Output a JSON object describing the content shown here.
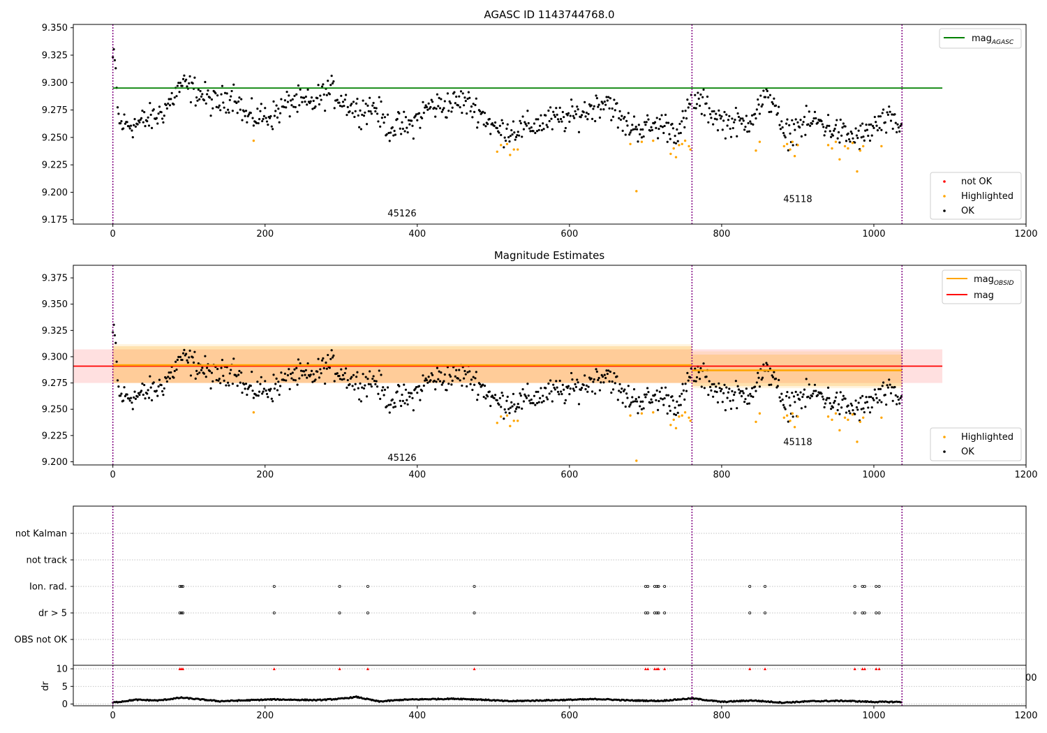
{
  "chart_data": [
    {
      "type": "scatter",
      "title": "AGASC ID 1143744768.0",
      "xlim": [
        -52,
        1200
      ],
      "ylim": [
        9.171,
        9.353
      ],
      "xticks": [
        "0",
        "200",
        "400",
        "600",
        "800",
        "1000",
        "1200"
      ],
      "yticks": [
        "9.175",
        "9.200",
        "9.225",
        "9.250",
        "9.275",
        "9.300",
        "9.325",
        "9.350"
      ],
      "xtick_values": [
        0,
        200,
        400,
        600,
        800,
        1000,
        1200
      ],
      "ytick_values": [
        9.175,
        9.2,
        9.225,
        9.25,
        9.275,
        9.3,
        9.325,
        9.35
      ],
      "obsid_boundaries": [
        0,
        761,
        1037
      ],
      "obsid_labels": [
        {
          "text": "45126",
          "x": 380,
          "y": 9.178
        },
        {
          "text": "45118",
          "x": 900,
          "y": 9.191
        }
      ],
      "agasc_mag": 9.295,
      "agasc_line_x": [
        0,
        1090
      ],
      "legend_top": {
        "position": "top-right",
        "label_main": "mag",
        "label_sub": "AGASC",
        "color": "#008000"
      },
      "legend_bottom": {
        "position": "bottom-right",
        "entries": [
          {
            "name": "not OK",
            "color": "#ff0000"
          },
          {
            "name": "Highlighted",
            "color": "#ffa500"
          },
          {
            "name": "OK",
            "color": "#000000"
          }
        ]
      },
      "series": [
        {
          "name": "OK",
          "color": "#000000",
          "anchors": [
            [
              0,
              9.322
            ],
            [
              3,
              9.316
            ],
            [
              8,
              9.262
            ],
            [
              30,
              9.262
            ],
            [
              60,
              9.27
            ],
            [
              75,
              9.282
            ],
            [
              90,
              9.298
            ],
            [
              110,
              9.292
            ],
            [
              135,
              9.28
            ],
            [
              160,
              9.29
            ],
            [
              175,
              9.268
            ],
            [
              210,
              9.27
            ],
            [
              235,
              9.283
            ],
            [
              260,
              9.28
            ],
            [
              285,
              9.293
            ],
            [
              300,
              9.285
            ],
            [
              320,
              9.275
            ],
            [
              345,
              9.278
            ],
            [
              360,
              9.26
            ],
            [
              390,
              9.26
            ],
            [
              415,
              9.278
            ],
            [
              440,
              9.28
            ],
            [
              460,
              9.283
            ],
            [
              480,
              9.275
            ],
            [
              505,
              9.256
            ],
            [
              540,
              9.258
            ],
            [
              570,
              9.265
            ],
            [
              600,
              9.268
            ],
            [
              625,
              9.275
            ],
            [
              650,
              9.285
            ],
            [
              670,
              9.262
            ],
            [
              700,
              9.258
            ],
            [
              720,
              9.262
            ],
            [
              745,
              9.255
            ],
            [
              762,
              9.285
            ],
            [
              775,
              9.28
            ],
            [
              800,
              9.265
            ],
            [
              830,
              9.262
            ],
            [
              855,
              9.283
            ],
            [
              870,
              9.285
            ],
            [
              880,
              9.25
            ],
            [
              900,
              9.26
            ],
            [
              925,
              9.265
            ],
            [
              945,
              9.258
            ],
            [
              970,
              9.25
            ],
            [
              990,
              9.252
            ],
            [
              1000,
              9.26
            ],
            [
              1020,
              9.265
            ],
            [
              1037,
              9.258
            ]
          ],
          "noise": 0.008
        },
        {
          "name": "Highlighted",
          "color": "#ffa500",
          "points": [
            [
              185,
              9.247
            ],
            [
              505,
              9.237
            ],
            [
              510,
              9.243
            ],
            [
              518,
              9.244
            ],
            [
              522,
              9.234
            ],
            [
              527,
              9.239
            ],
            [
              532,
              9.239
            ],
            [
              680,
              9.244
            ],
            [
              688,
              9.201
            ],
            [
              695,
              9.246
            ],
            [
              710,
              9.247
            ],
            [
              733,
              9.235
            ],
            [
              737,
              9.24
            ],
            [
              740,
              9.232
            ],
            [
              744,
              9.243
            ],
            [
              748,
              9.244
            ],
            [
              752,
              9.247
            ],
            [
              757,
              9.242
            ],
            [
              759,
              9.239
            ],
            [
              845,
              9.238
            ],
            [
              850,
              9.246
            ],
            [
              882,
              9.242
            ],
            [
              886,
              9.244
            ],
            [
              890,
              9.239
            ],
            [
              893,
              9.246
            ],
            [
              896,
              9.233
            ],
            [
              900,
              9.243
            ],
            [
              940,
              9.243
            ],
            [
              945,
              9.24
            ],
            [
              950,
              9.246
            ],
            [
              955,
              9.23
            ],
            [
              962,
              9.242
            ],
            [
              966,
              9.24
            ],
            [
              972,
              9.245
            ],
            [
              978,
              9.219
            ],
            [
              982,
              9.238
            ],
            [
              986,
              9.242
            ],
            [
              1010,
              9.242
            ]
          ]
        },
        {
          "name": "not OK",
          "color": "#ff0000",
          "points": []
        }
      ]
    },
    {
      "type": "scatter",
      "title": "Magnitude Estimates",
      "xlim": [
        -52,
        1200
      ],
      "ylim": [
        9.197,
        9.387
      ],
      "xticks": [
        "0",
        "200",
        "400",
        "600",
        "800",
        "1000",
        "1200"
      ],
      "yticks": [
        "9.200",
        "9.225",
        "9.250",
        "9.275",
        "9.300",
        "9.325",
        "9.350",
        "9.375"
      ],
      "xtick_values": [
        0,
        200,
        400,
        600,
        800,
        1000,
        1200
      ],
      "ytick_values": [
        9.2,
        9.225,
        9.25,
        9.275,
        9.3,
        9.325,
        9.35,
        9.375
      ],
      "obsid_boundaries": [
        0,
        761,
        1037
      ],
      "obsid_labels": [
        {
          "text": "45126",
          "x": 380,
          "y": 9.201
        },
        {
          "text": "45118",
          "x": 900,
          "y": 9.216
        }
      ],
      "mag": {
        "value": 9.291,
        "band": [
          9.275,
          9.307
        ],
        "x": [
          -52,
          1090
        ],
        "color": "#ff0000"
      },
      "mag_obsid": [
        {
          "x": [
            0,
            761
          ],
          "value": 9.292,
          "band_inner": [
            9.275,
            9.31
          ],
          "band_outer": [
            9.275,
            9.312
          ]
        },
        {
          "x": [
            761,
            1037
          ],
          "value": 9.287,
          "band_inner": [
            9.272,
            9.302
          ],
          "band_outer": [
            9.27,
            9.305
          ]
        }
      ],
      "legend_top": {
        "position": "top-right",
        "entries": [
          {
            "label_main": "mag",
            "label_sub": "OBSID",
            "color": "#ffa500"
          },
          {
            "label_main": "mag",
            "label_sub": "",
            "color": "#ff0000"
          }
        ]
      },
      "legend_bottom": {
        "position": "bottom-right",
        "entries": [
          {
            "name": "Highlighted",
            "color": "#ffa500"
          },
          {
            "name": "OK",
            "color": "#000000"
          }
        ]
      },
      "series_source": "same samples as panel 1"
    },
    {
      "type": "scatter",
      "title": "",
      "categories": [
        "not Kalman",
        "not track",
        "Ion. rad.",
        "dr > 5",
        "OBS not OK"
      ],
      "xlim": [
        -52,
        1200
      ],
      "obsid_boundaries": [
        0,
        761,
        1037
      ],
      "flag_x": [
        88,
        90,
        92,
        212,
        298,
        335,
        475,
        700,
        703,
        712,
        715,
        717,
        725,
        837,
        857,
        975,
        985,
        988,
        1003,
        1007
      ],
      "flags": {
        "Ion. rad.": "flag_x",
        "dr > 5": "flag_x",
        "not Kalman": [],
        "not track": [],
        "OBS not OK": []
      }
    },
    {
      "type": "scatter",
      "title": "",
      "ylabel": "dr",
      "ylim": [
        -0.5,
        11
      ],
      "yticks": [
        "0",
        "5",
        "10"
      ],
      "ytick_values": [
        0,
        5,
        10
      ],
      "xlim": [
        -52,
        1200
      ],
      "xticks": [
        "0",
        "200",
        "400",
        "600",
        "800",
        "1000",
        "1200"
      ],
      "xtick_values": [
        0,
        200,
        400,
        600,
        800,
        1000,
        1200
      ],
      "clipped_tick": "00",
      "obsid_boundaries": [
        0,
        761,
        1037
      ],
      "dr_clip_value": 10,
      "dr_series": {
        "name": "dr",
        "color": "#000000",
        "anchors": [
          [
            0,
            0.4
          ],
          [
            30,
            1.2
          ],
          [
            60,
            1.0
          ],
          [
            90,
            1.8
          ],
          [
            110,
            1.4
          ],
          [
            140,
            0.8
          ],
          [
            170,
            1.0
          ],
          [
            210,
            1.3
          ],
          [
            240,
            1.2
          ],
          [
            270,
            1.1
          ],
          [
            300,
            1.5
          ],
          [
            320,
            2.0
          ],
          [
            350,
            0.7
          ],
          [
            380,
            1.2
          ],
          [
            420,
            1.4
          ],
          [
            450,
            1.5
          ],
          [
            480,
            1.3
          ],
          [
            520,
            0.8
          ],
          [
            560,
            1.0
          ],
          [
            600,
            1.2
          ],
          [
            640,
            1.4
          ],
          [
            680,
            1.0
          ],
          [
            720,
            0.9
          ],
          [
            761,
            1.6
          ],
          [
            800,
            0.6
          ],
          [
            840,
            1.0
          ],
          [
            880,
            0.4
          ],
          [
            920,
            0.8
          ],
          [
            960,
            0.9
          ],
          [
            1000,
            0.6
          ],
          [
            1037,
            0.6
          ]
        ]
      }
    }
  ]
}
